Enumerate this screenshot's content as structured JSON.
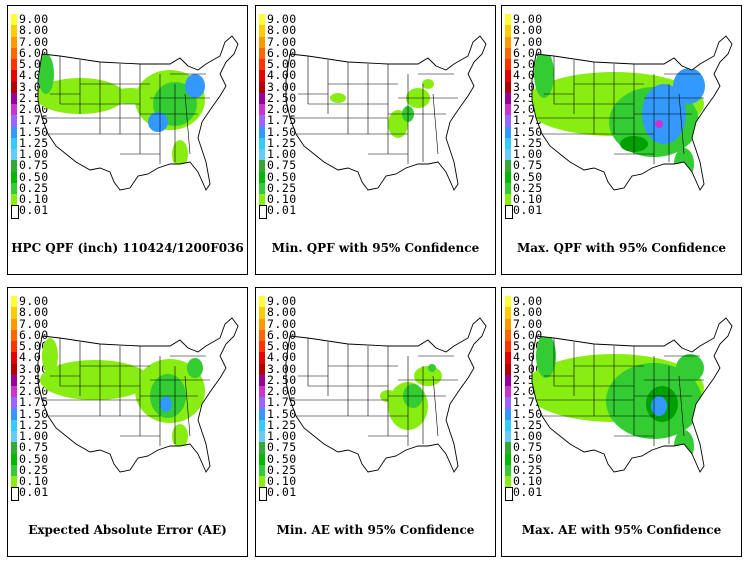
{
  "legend": {
    "labels": [
      "9.00",
      "8.00",
      "7.00",
      "6.00",
      "5.00",
      "4.00",
      "3.00",
      "2.50",
      "2.00",
      "1.75",
      "1.50",
      "1.25",
      "1.00",
      "0.75",
      "0.50",
      "0.25",
      "0.10",
      "0.01"
    ],
    "colors": [
      "#ffff33",
      "#ffcc00",
      "#ff9900",
      "#ff6600",
      "#ff3300",
      "#e60000",
      "#b30000",
      "#990099",
      "#cc33cc",
      "#9966ff",
      "#3399ff",
      "#33ccff",
      "#66ccff",
      "#33aa33",
      "#00bb00",
      "#33cc33",
      "#88ee11",
      "#ffffff"
    ]
  },
  "panels": [
    {
      "caption": "HPC QPF (inch) 110424/1200F036"
    },
    {
      "caption": "Min. QPF with 95% Confidence"
    },
    {
      "caption": "Max. QPF with 95% Confidence"
    },
    {
      "caption": "Expected Absolute Error (AE)"
    },
    {
      "caption": "Min. AE with 95% Confidence"
    },
    {
      "caption": "Max. AE with 95% Confidence"
    }
  ],
  "precip_levels": {
    "light": "#88ee11",
    "green": "#33cc33",
    "dark_green": "#00a000",
    "blue": "#3399ff",
    "dark_blue": "#3366cc",
    "purple": "#cc33cc",
    "red": "#ee0000"
  }
}
